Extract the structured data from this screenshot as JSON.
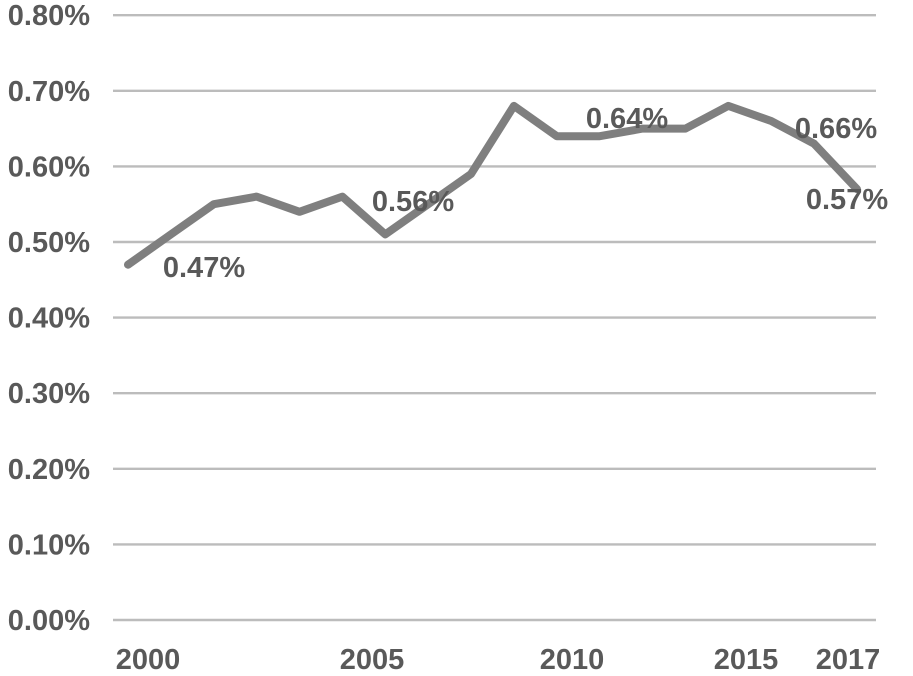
{
  "chart_data": {
    "type": "line",
    "title": "",
    "xlabel": "",
    "ylabel": "",
    "x": [
      2000,
      2001,
      2002,
      2003,
      2004,
      2005,
      2006,
      2007,
      2008,
      2009,
      2010,
      2011,
      2012,
      2013,
      2014,
      2015,
      2016,
      2017
    ],
    "values": [
      0.47,
      0.51,
      0.55,
      0.56,
      0.54,
      0.56,
      0.51,
      0.55,
      0.59,
      0.68,
      0.64,
      0.64,
      0.65,
      0.65,
      0.68,
      0.66,
      0.63,
      0.57
    ],
    "unit": "%",
    "ylim": [
      0.0,
      0.8
    ],
    "y_tick_step": 0.1,
    "y_tick_labels": [
      "0.00%",
      "0.10%",
      "0.20%",
      "0.30%",
      "0.40%",
      "0.50%",
      "0.60%",
      "0.70%",
      "0.80%"
    ],
    "x_tick_labels": [
      "2000",
      "2005",
      "2010",
      "2015",
      "2017"
    ],
    "data_labels": [
      {
        "year": "2000",
        "text": "0.47%"
      },
      {
        "year": "2005",
        "text": "0.56%"
      },
      {
        "year": "2010",
        "text": "0.64%"
      },
      {
        "year": "2015",
        "text": "0.66%"
      },
      {
        "year": "2017",
        "text": "0.57%"
      }
    ],
    "grid": "horizontal",
    "legend": "none",
    "colors": {
      "line": "#7f7f7f",
      "labels": "#595959",
      "gridlines": "#bcbcbc",
      "background": "#ffffff"
    }
  }
}
